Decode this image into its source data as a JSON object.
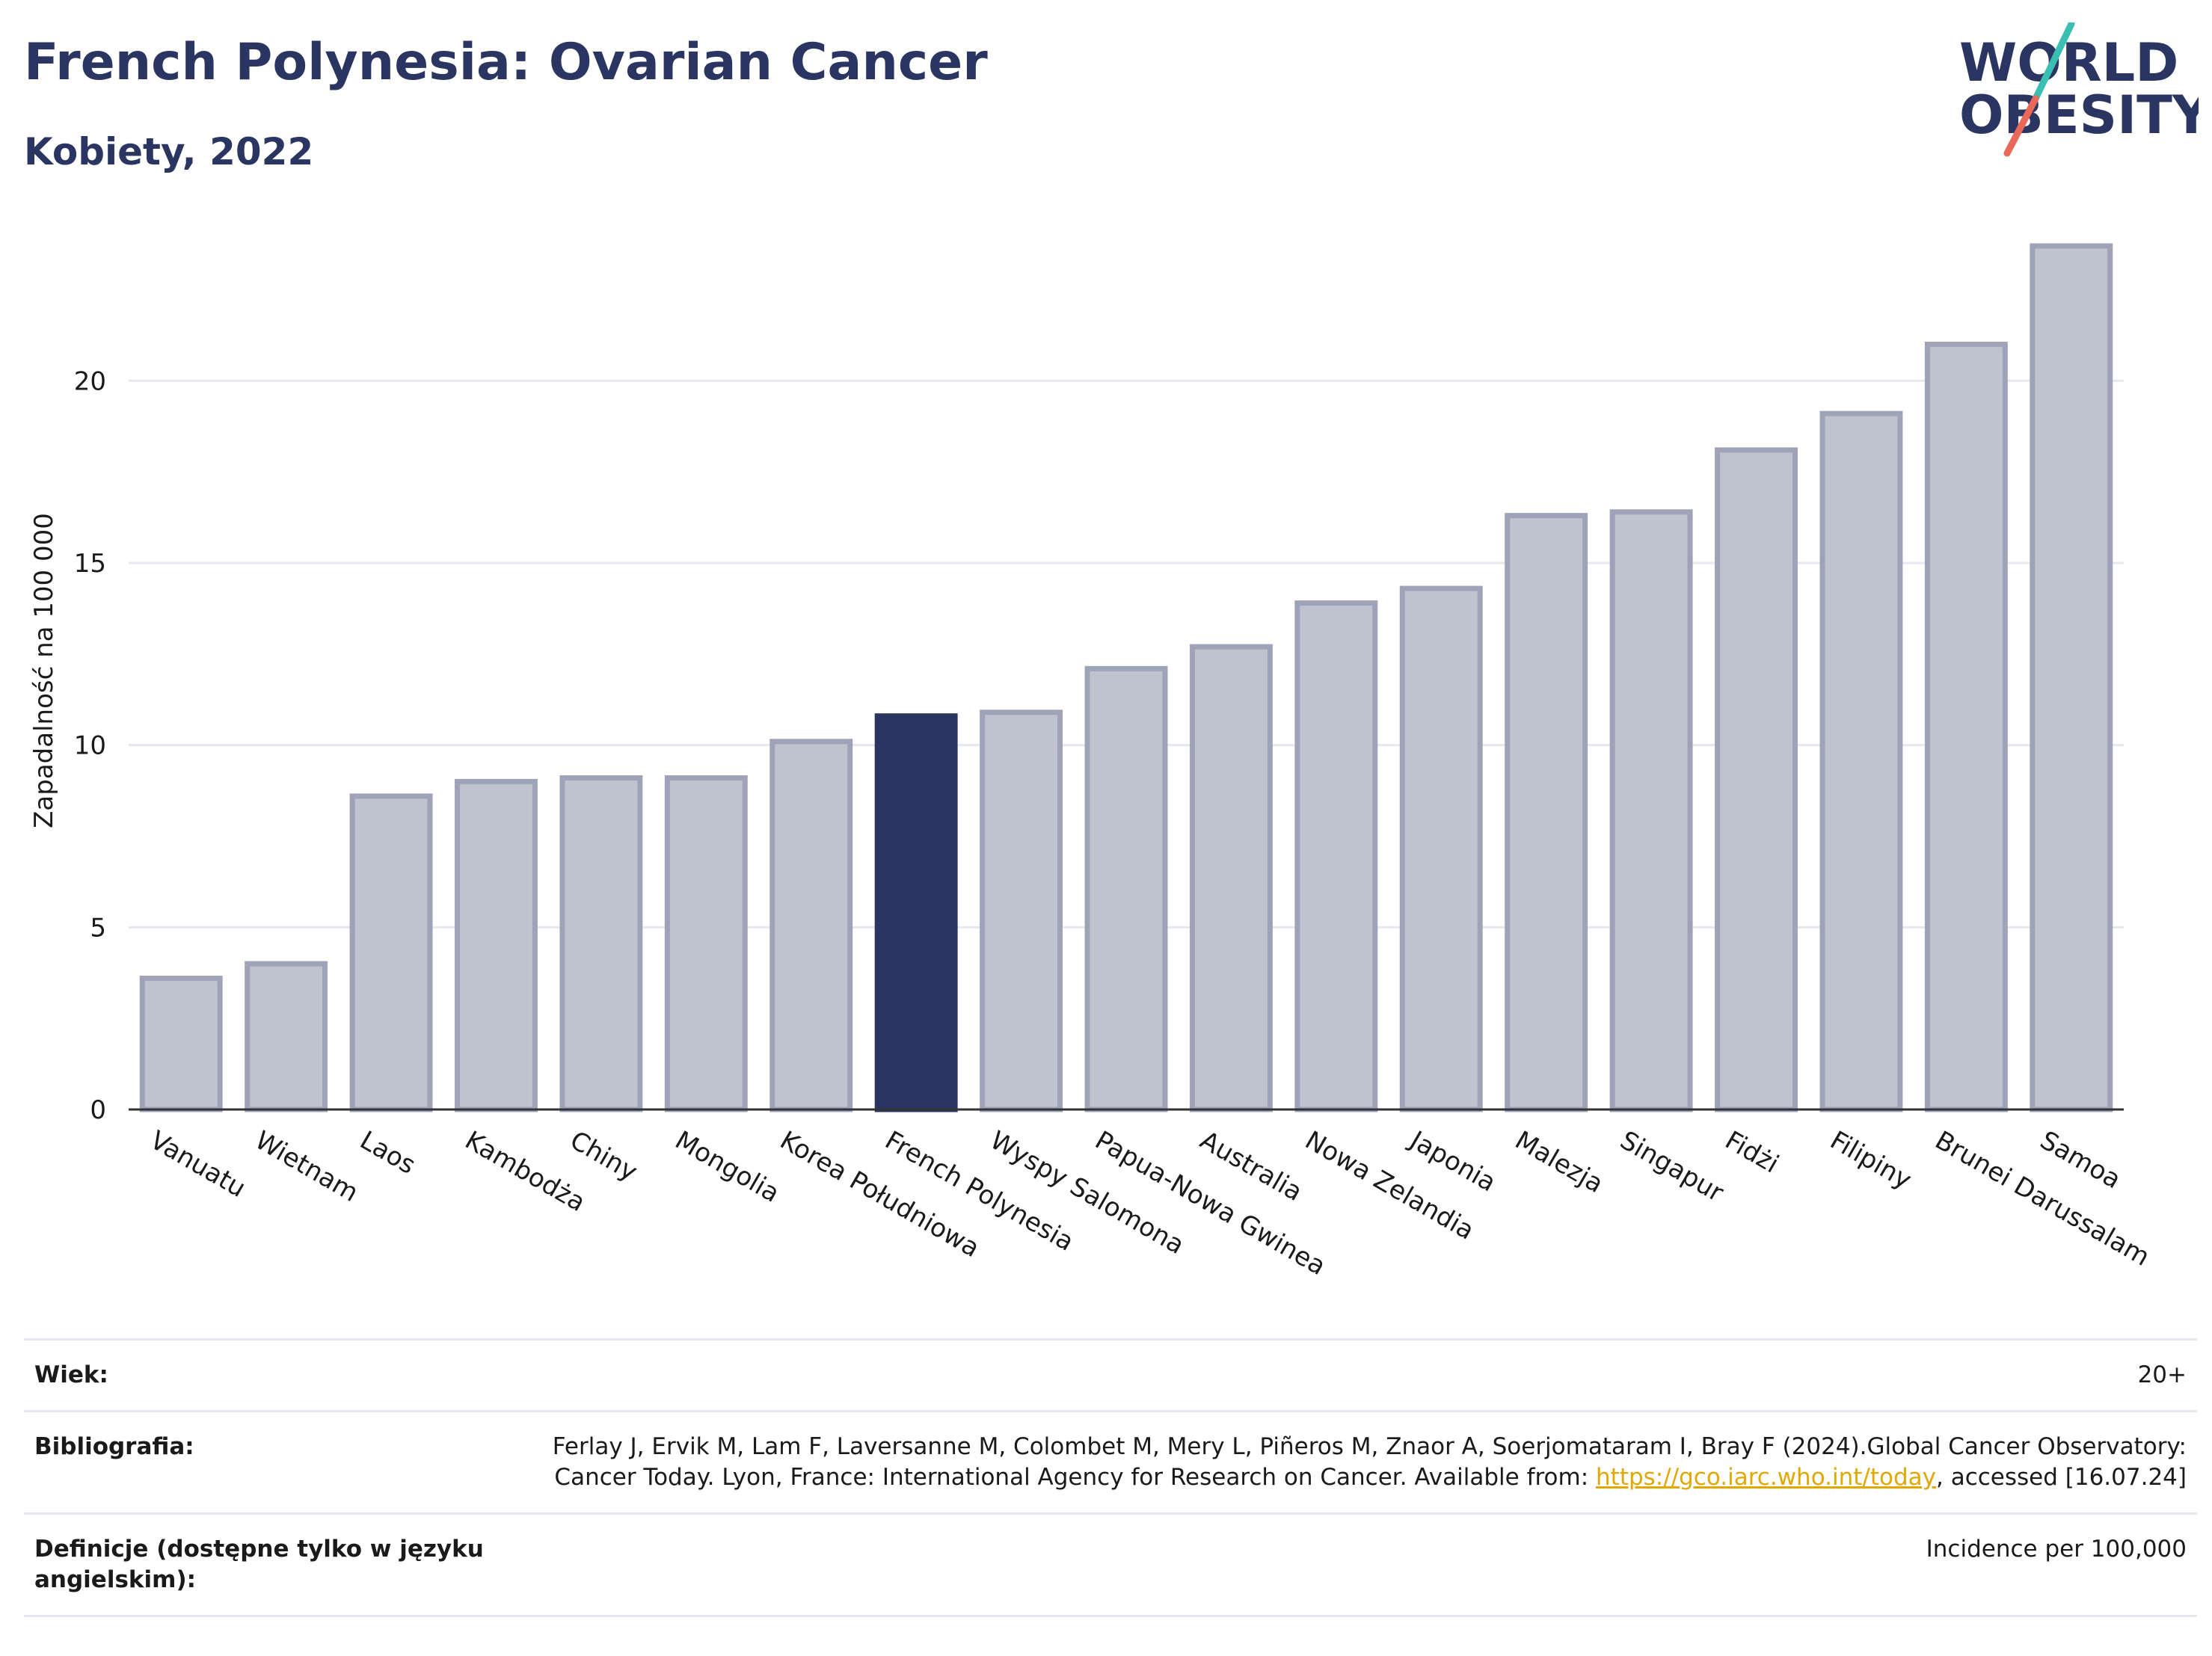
{
  "header": {
    "title": "French Polynesia: Ovarian Cancer",
    "subtitle": "Kobiety, 2022"
  },
  "logo": {
    "line1": "WORLD",
    "line2": "OBESITY"
  },
  "chart_data": {
    "type": "bar",
    "ylabel": "Zapadalność na 100 000",
    "ylim": [
      0,
      24.5
    ],
    "yticks": [
      0,
      5,
      10,
      15,
      20
    ],
    "highlight": "French Polynesia",
    "colors": {
      "bar": "#bfc2cf",
      "bar_edge": "#9ea3b8",
      "highlight": "#2b3561"
    },
    "categories": [
      "Vanuatu",
      "Wietnam",
      "Laos",
      "Kambodża",
      "Chiny",
      "Mongolia",
      "Korea Południowa",
      "French Polynesia",
      "Wyspy Salomona",
      "Papua-Nowa Gwinea",
      "Australia",
      "Nowa Zelandia",
      "Japonia",
      "Malezja",
      "Singapur",
      "Fidżi",
      "Filipiny",
      "Brunei Darussalam",
      "Samoa"
    ],
    "values": [
      3.6,
      4.0,
      8.6,
      9.0,
      9.1,
      9.1,
      10.1,
      10.8,
      10.9,
      12.1,
      12.7,
      13.9,
      14.3,
      16.3,
      16.4,
      18.1,
      19.1,
      21.0,
      23.7
    ]
  },
  "footer": {
    "rows": [
      {
        "label": "Wiek:",
        "value": "20+"
      },
      {
        "label": "Bibliografia:",
        "value_pre": "Ferlay J, Ervik M, Lam F, Laversanne M, Colombet M, Mery L, Piñeros M, Znaor A, Soerjomataram I, Bray F (2024).Global Cancer Observatory: Cancer Today. Lyon, France: International Agency for Research on Cancer. Available from: ",
        "link": "https://gco.iarc.who.int/today",
        "value_post": ", accessed [16.07.24]"
      },
      {
        "label": "Definicje (dostępne tylko w języku angielskim):",
        "value": "Incidence per 100,000"
      }
    ]
  }
}
